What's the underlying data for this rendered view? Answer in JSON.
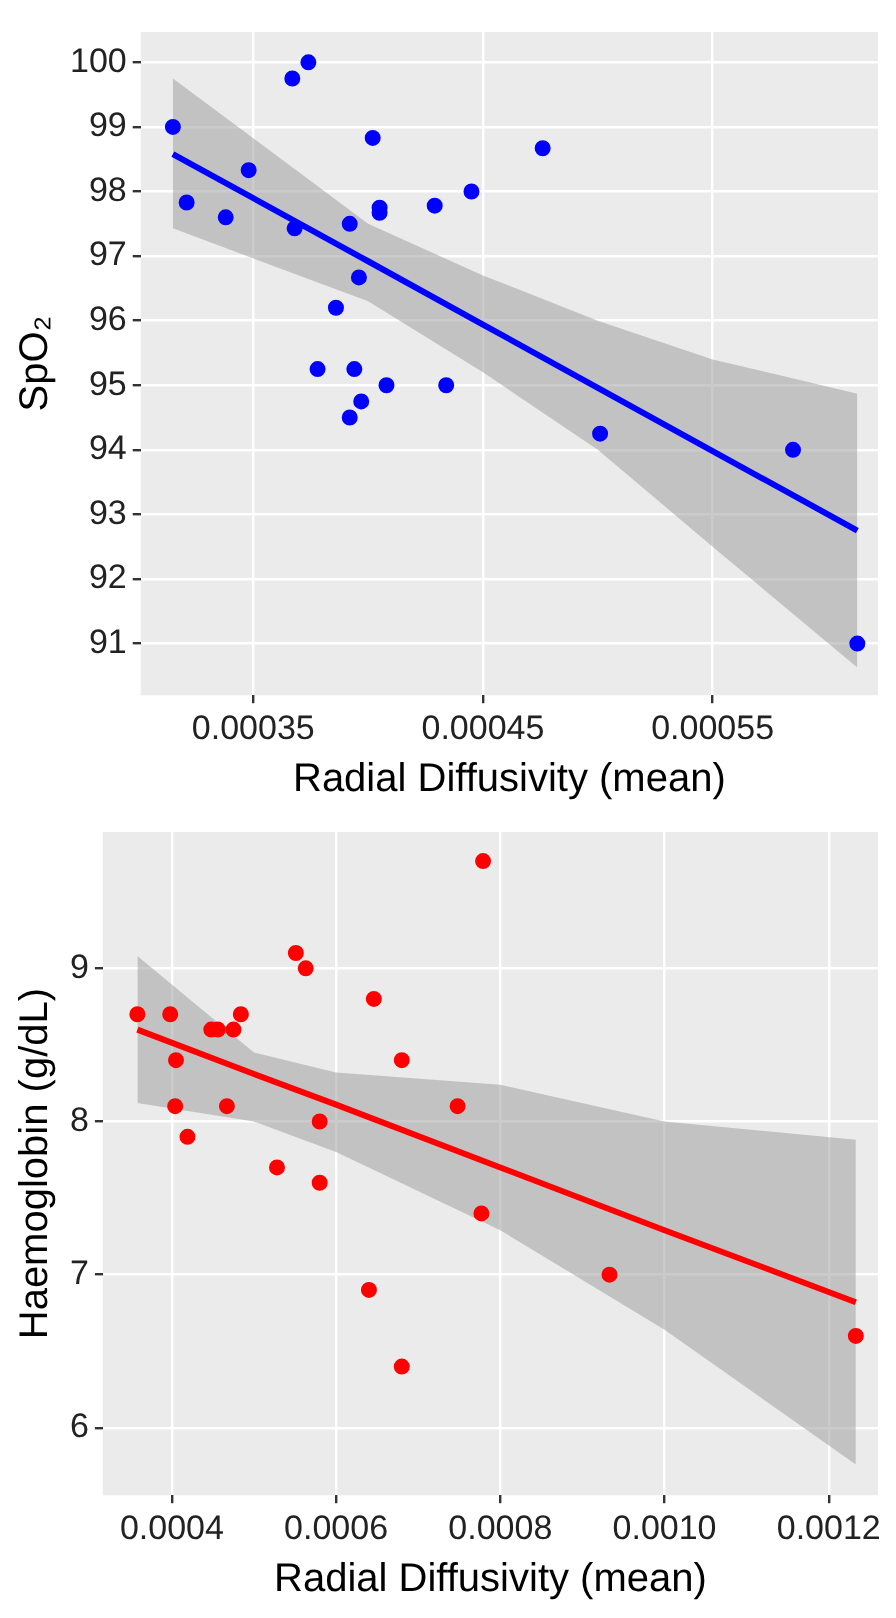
{
  "chart_data": [
    {
      "type": "scatter",
      "xlabel": "Radial Diffusivity (mean)",
      "ylabel": "SpO₂",
      "xlim": [
        0.000301,
        0.000622
      ],
      "xticks": [
        0.00035,
        0.00045,
        0.00055
      ],
      "ylim": [
        90.2,
        100.47
      ],
      "yticks": [
        91,
        92,
        93,
        94,
        95,
        96,
        97,
        98,
        99,
        100
      ],
      "grid": true,
      "legend": false,
      "marker": "circle",
      "series": [
        {
          "color": "#0000ff",
          "x": [
            0.000315,
            0.000321,
            0.000338,
            0.000348,
            0.000367,
            0.000368,
            0.000374,
            0.000402,
            0.000392,
            0.000405,
            0.000405,
            0.000396,
            0.000386,
            0.000378,
            0.000394,
            0.000408,
            0.000434,
            0.000429,
            0.000445,
            0.000476,
            0.000392,
            0.000397,
            0.000501,
            0.000585,
            0.000613
          ],
          "values": [
            99.0,
            97.83,
            97.6,
            98.33,
            99.75,
            97.43,
            100,
            98.83,
            97.5,
            97.75,
            97.67,
            96.67,
            96.2,
            95.25,
            95.25,
            95.0,
            95.0,
            97.78,
            98.0,
            98.67,
            94.5,
            94.75,
            94.25,
            94.0,
            91.0
          ]
        },
        {
          "type": "line",
          "marker": "none",
          "color": "#0000ff",
          "x": [
            0.000315,
            0.0004,
            0.00045,
            0.0005,
            0.00055,
            0.000613
          ],
          "values": [
            98.58,
            96.92,
            95.94,
            94.96,
            93.98,
            92.75
          ],
          "lower": [
            97.43,
            96.3,
            95.2,
            94.0,
            92.5,
            90.63
          ],
          "upper": [
            99.75,
            97.5,
            96.7,
            96.0,
            95.4,
            94.87
          ]
        }
      ]
    },
    {
      "type": "scatter",
      "xlabel": "Radial Diffusivity (mean)",
      "ylabel": "Haemoglobin (g/dL)",
      "xlim": [
        0.000316,
        0.00126
      ],
      "xticks": [
        0.0004,
        0.0006,
        0.0008,
        {
          "value": 0.001,
          "label": "0.0010"
        },
        0.0012
      ],
      "ylim": [
        5.56,
        9.89
      ],
      "yticks": [
        6,
        7,
        8,
        9
      ],
      "grid": true,
      "legend": false,
      "marker": "circle",
      "series": [
        {
          "color": "#ff0000",
          "x": [
            0.000358,
            0.000398,
            0.000405,
            0.000404,
            0.000419,
            0.000448,
            0.000456,
            0.000475,
            0.000484,
            0.000467,
            0.000528,
            0.000551,
            0.000563,
            0.00058,
            0.00058,
            0.000646,
            0.00068,
            0.000748,
            0.000779,
            0.00064,
            0.00068,
            0.000777,
            0.000933,
            0.001233
          ],
          "values": [
            8.7,
            8.7,
            8.4,
            8.1,
            7.9,
            8.6,
            8.6,
            8.6,
            8.7,
            8.1,
            7.7,
            9.1,
            9.0,
            8.0,
            7.6,
            8.8,
            8.4,
            8.1,
            9.7,
            6.9,
            6.4,
            7.4,
            7.0,
            6.6
          ]
        },
        {
          "type": "line",
          "marker": "none",
          "color": "#ff0000",
          "x": [
            0.000358,
            0.0005,
            0.0006,
            0.0008,
            0.001,
            0.001233
          ],
          "values": [
            8.6,
            8.31,
            8.11,
            7.7,
            7.29,
            6.82
          ],
          "lower": [
            8.12,
            8.0,
            7.8,
            7.29,
            6.64,
            5.76
          ],
          "upper": [
            9.08,
            8.45,
            8.32,
            8.24,
            8.0,
            7.88
          ]
        }
      ]
    }
  ]
}
